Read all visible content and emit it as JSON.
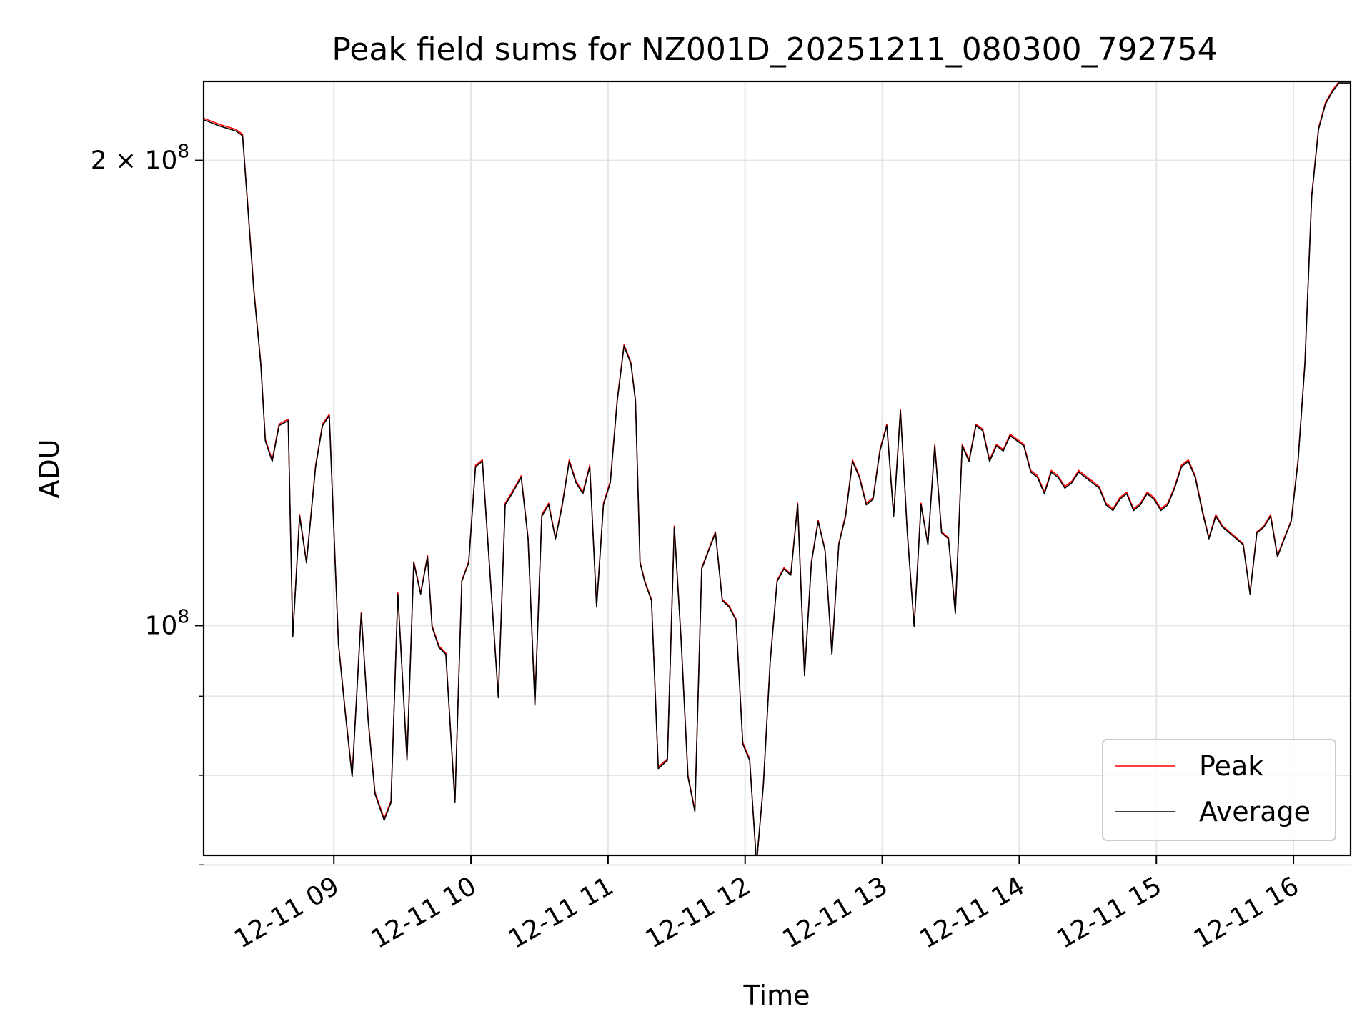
{
  "chart_data": {
    "type": "line",
    "title": "Peak field sums for NZ001D_20251211_080300_792754",
    "xlabel": "Time",
    "ylabel": "ADU",
    "yscale": "log",
    "xlim": [
      "2025-12-11 08:03",
      "2025-12-11 16:25"
    ],
    "ylim": [
      71000000,
      225000000
    ],
    "grid": true,
    "legend_position": "lower right",
    "x_ticks": [
      {
        "time": "2025-12-11 09:00",
        "label": "12-11 09"
      },
      {
        "time": "2025-12-11 10:00",
        "label": "12-11 10"
      },
      {
        "time": "2025-12-11 11:00",
        "label": "12-11 11"
      },
      {
        "time": "2025-12-11 12:00",
        "label": "12-11 12"
      },
      {
        "time": "2025-12-11 13:00",
        "label": "12-11 13"
      },
      {
        "time": "2025-12-11 14:00",
        "label": "12-11 14"
      },
      {
        "time": "2025-12-11 15:00",
        "label": "12-11 15"
      },
      {
        "time": "2025-12-11 16:00",
        "label": "12-11 16"
      }
    ],
    "y_major_ticks": [
      {
        "value": 100000000,
        "label_base": "10",
        "label_exp": "8"
      },
      {
        "value": 200000000,
        "label_base": "2 × 10",
        "label_exp": "8"
      }
    ],
    "y_minor_ticks": [
      70000000,
      80000000,
      90000000
    ],
    "colors": {
      "Peak": "#ff0000",
      "Average": "#000000",
      "grid": "#e5e5e5"
    },
    "series": [
      {
        "name": "Peak",
        "color": "#ff0000",
        "x": [
          "2025-12-11 08:03",
          "2025-12-11 08:10",
          "2025-12-11 08:17",
          "2025-12-11 08:20",
          "2025-12-11 08:22",
          "2025-12-11 08:25",
          "2025-12-11 08:28",
          "2025-12-11 08:30",
          "2025-12-11 08:33",
          "2025-12-11 08:36",
          "2025-12-11 08:40",
          "2025-12-11 08:42",
          "2025-12-11 08:45",
          "2025-12-11 08:48",
          "2025-12-11 08:52",
          "2025-12-11 08:55",
          "2025-12-11 08:58",
          "2025-12-11 09:02",
          "2025-12-11 09:05",
          "2025-12-11 09:08",
          "2025-12-11 09:12",
          "2025-12-11 09:15",
          "2025-12-11 09:18",
          "2025-12-11 09:22",
          "2025-12-11 09:25",
          "2025-12-11 09:28",
          "2025-12-11 09:32",
          "2025-12-11 09:35",
          "2025-12-11 09:38",
          "2025-12-11 09:41",
          "2025-12-11 09:43",
          "2025-12-11 09:46",
          "2025-12-11 09:49",
          "2025-12-11 09:53",
          "2025-12-11 09:56",
          "2025-12-11 09:59",
          "2025-12-11 10:02",
          "2025-12-11 10:05",
          "2025-12-11 10:08",
          "2025-12-11 10:12",
          "2025-12-11 10:15",
          "2025-12-11 10:18",
          "2025-12-11 10:22",
          "2025-12-11 10:25",
          "2025-12-11 10:28",
          "2025-12-11 10:31",
          "2025-12-11 10:34",
          "2025-12-11 10:37",
          "2025-12-11 10:40",
          "2025-12-11 10:43",
          "2025-12-11 10:46",
          "2025-12-11 10:49",
          "2025-12-11 10:52",
          "2025-12-11 10:55",
          "2025-12-11 10:58",
          "2025-12-11 11:01",
          "2025-12-11 11:04",
          "2025-12-11 11:07",
          "2025-12-11 11:10",
          "2025-12-11 11:12",
          "2025-12-11 11:14",
          "2025-12-11 11:16",
          "2025-12-11 11:19",
          "2025-12-11 11:22",
          "2025-12-11 11:26",
          "2025-12-11 11:29",
          "2025-12-11 11:32",
          "2025-12-11 11:35",
          "2025-12-11 11:38",
          "2025-12-11 11:41",
          "2025-12-11 11:44",
          "2025-12-11 11:47",
          "2025-12-11 11:50",
          "2025-12-11 11:53",
          "2025-12-11 11:56",
          "2025-12-11 11:59",
          "2025-12-11 12:02",
          "2025-12-11 12:05",
          "2025-12-11 12:08",
          "2025-12-11 12:11",
          "2025-12-11 12:14",
          "2025-12-11 12:17",
          "2025-12-11 12:20",
          "2025-12-11 12:23",
          "2025-12-11 12:26",
          "2025-12-11 12:29",
          "2025-12-11 12:32",
          "2025-12-11 12:35",
          "2025-12-11 12:38",
          "2025-12-11 12:41",
          "2025-12-11 12:44",
          "2025-12-11 12:47",
          "2025-12-11 12:50",
          "2025-12-11 12:53",
          "2025-12-11 12:56",
          "2025-12-11 12:59",
          "2025-12-11 13:02",
          "2025-12-11 13:05",
          "2025-12-11 13:08",
          "2025-12-11 13:11",
          "2025-12-11 13:14",
          "2025-12-11 13:17",
          "2025-12-11 13:20",
          "2025-12-11 13:23",
          "2025-12-11 13:26",
          "2025-12-11 13:29",
          "2025-12-11 13:32",
          "2025-12-11 13:35",
          "2025-12-11 13:38",
          "2025-12-11 13:41",
          "2025-12-11 13:44",
          "2025-12-11 13:47",
          "2025-12-11 13:50",
          "2025-12-11 13:53",
          "2025-12-11 13:56",
          "2025-12-11 13:59",
          "2025-12-11 14:02",
          "2025-12-11 14:05",
          "2025-12-11 14:08",
          "2025-12-11 14:11",
          "2025-12-11 14:14",
          "2025-12-11 14:17",
          "2025-12-11 14:20",
          "2025-12-11 14:23",
          "2025-12-11 14:26",
          "2025-12-11 14:29",
          "2025-12-11 14:32",
          "2025-12-11 14:35",
          "2025-12-11 14:38",
          "2025-12-11 14:41",
          "2025-12-11 14:44",
          "2025-12-11 14:47",
          "2025-12-11 14:50",
          "2025-12-11 14:53",
          "2025-12-11 14:56",
          "2025-12-11 14:59",
          "2025-12-11 15:02",
          "2025-12-11 15:05",
          "2025-12-11 15:08",
          "2025-12-11 15:11",
          "2025-12-11 15:14",
          "2025-12-11 15:17",
          "2025-12-11 15:20",
          "2025-12-11 15:23",
          "2025-12-11 15:26",
          "2025-12-11 15:29",
          "2025-12-11 15:32",
          "2025-12-11 15:35",
          "2025-12-11 15:38",
          "2025-12-11 15:41",
          "2025-12-11 15:44",
          "2025-12-11 15:47",
          "2025-12-11 15:50",
          "2025-12-11 15:53",
          "2025-12-11 15:56",
          "2025-12-11 15:59",
          "2025-12-11 16:02",
          "2025-12-11 16:05",
          "2025-12-11 16:08",
          "2025-12-11 16:11",
          "2025-12-11 16:14",
          "2025-12-11 16:17",
          "2025-12-11 16:20",
          "2025-12-11 16:25"
        ],
        "y": [
          213000000,
          211000000,
          209500000,
          208000000,
          190000000,
          165000000,
          148000000,
          132000000,
          128000000,
          135000000,
          136000000,
          98500000,
          118000000,
          110000000,
          127000000,
          135000000,
          137000000,
          97500000,
          88000000,
          80000000,
          102000000,
          87000000,
          78000000,
          75000000,
          77000000,
          105000000,
          82000000,
          110000000,
          105000000,
          111000000,
          100000000,
          97000000,
          96000000,
          77000000,
          107000000,
          110000000,
          127000000,
          128000000,
          110000000,
          90000000,
          120000000,
          122000000,
          125000000,
          114000000,
          89000000,
          118000000,
          120000000,
          114000000,
          120000000,
          128000000,
          124000000,
          122000000,
          127000000,
          103000000,
          120000000,
          124000000,
          140000000,
          152000000,
          148000000,
          140000000,
          110000000,
          107000000,
          104000000,
          81000000,
          82000000,
          116000000,
          98000000,
          80000000,
          76000000,
          109000000,
          112000000,
          115000000,
          104000000,
          103000000,
          101000000,
          84000000,
          82000000,
          70000000,
          79000000,
          95000000,
          107000000,
          109000000,
          108000000,
          120000000,
          93000000,
          110000000,
          117000000,
          112000000,
          96000000,
          113000000,
          118000000,
          128000000,
          125000000,
          120000000,
          121000000,
          130000000,
          135000000,
          118000000,
          138000000,
          115000000,
          100000000,
          120000000,
          113000000,
          131000000,
          115000000,
          114000000,
          102000000,
          131000000,
          128000000,
          135000000,
          134000000,
          128000000,
          131000000,
          130000000,
          133000000,
          132000000,
          131000000,
          126000000,
          125000000,
          122000000,
          126000000,
          125000000,
          123000000,
          124000000,
          126000000,
          125000000,
          124000000,
          123000000,
          120000000,
          119000000,
          121000000,
          122000000,
          119000000,
          120000000,
          122000000,
          121000000,
          119000000,
          120000000,
          123000000,
          127000000,
          128000000,
          125000000,
          119000000,
          114000000,
          118000000,
          116000000,
          115000000,
          114000000,
          113000000,
          105000000,
          115000000,
          116000000,
          118000000,
          111000000,
          114000000,
          117000000,
          128000000,
          148000000,
          190000000,
          210000000,
          218000000,
          222000000,
          225000000,
          225000000
        ]
      },
      {
        "name": "Average",
        "color": "#000000",
        "x": [
          "2025-12-11 08:03",
          "2025-12-11 08:10",
          "2025-12-11 08:17",
          "2025-12-11 08:20",
          "2025-12-11 08:22",
          "2025-12-11 08:25",
          "2025-12-11 08:28",
          "2025-12-11 08:30",
          "2025-12-11 08:33",
          "2025-12-11 08:36",
          "2025-12-11 08:40",
          "2025-12-11 08:42",
          "2025-12-11 08:45",
          "2025-12-11 08:48",
          "2025-12-11 08:52",
          "2025-12-11 08:55",
          "2025-12-11 08:58",
          "2025-12-11 09:02",
          "2025-12-11 09:05",
          "2025-12-11 09:08",
          "2025-12-11 09:12",
          "2025-12-11 09:15",
          "2025-12-11 09:18",
          "2025-12-11 09:22",
          "2025-12-11 09:25",
          "2025-12-11 09:28",
          "2025-12-11 09:32",
          "2025-12-11 09:35",
          "2025-12-11 09:38",
          "2025-12-11 09:41",
          "2025-12-11 09:43",
          "2025-12-11 09:46",
          "2025-12-11 09:49",
          "2025-12-11 09:53",
          "2025-12-11 09:56",
          "2025-12-11 09:59",
          "2025-12-11 10:02",
          "2025-12-11 10:05",
          "2025-12-11 10:08",
          "2025-12-11 10:12",
          "2025-12-11 10:15",
          "2025-12-11 10:18",
          "2025-12-11 10:22",
          "2025-12-11 10:25",
          "2025-12-11 10:28",
          "2025-12-11 10:31",
          "2025-12-11 10:34",
          "2025-12-11 10:37",
          "2025-12-11 10:40",
          "2025-12-11 10:43",
          "2025-12-11 10:46",
          "2025-12-11 10:49",
          "2025-12-11 10:52",
          "2025-12-11 10:55",
          "2025-12-11 10:58",
          "2025-12-11 11:01",
          "2025-12-11 11:04",
          "2025-12-11 11:07",
          "2025-12-11 11:10",
          "2025-12-11 11:12",
          "2025-12-11 11:14",
          "2025-12-11 11:16",
          "2025-12-11 11:19",
          "2025-12-11 11:22",
          "2025-12-11 11:26",
          "2025-12-11 11:29",
          "2025-12-11 11:32",
          "2025-12-11 11:35",
          "2025-12-11 11:38",
          "2025-12-11 11:41",
          "2025-12-11 11:44",
          "2025-12-11 11:47",
          "2025-12-11 11:50",
          "2025-12-11 11:53",
          "2025-12-11 11:56",
          "2025-12-11 11:59",
          "2025-12-11 12:02",
          "2025-12-11 12:05",
          "2025-12-11 12:08",
          "2025-12-11 12:11",
          "2025-12-11 12:14",
          "2025-12-11 12:17",
          "2025-12-11 12:20",
          "2025-12-11 12:23",
          "2025-12-11 12:26",
          "2025-12-11 12:29",
          "2025-12-11 12:32",
          "2025-12-11 12:35",
          "2025-12-11 12:38",
          "2025-12-11 12:41",
          "2025-12-11 12:44",
          "2025-12-11 12:47",
          "2025-12-11 12:50",
          "2025-12-11 12:53",
          "2025-12-11 12:56",
          "2025-12-11 12:59",
          "2025-12-11 13:02",
          "2025-12-11 13:05",
          "2025-12-11 13:08",
          "2025-12-11 13:11",
          "2025-12-11 13:14",
          "2025-12-11 13:17",
          "2025-12-11 13:20",
          "2025-12-11 13:23",
          "2025-12-11 13:26",
          "2025-12-11 13:29",
          "2025-12-11 13:32",
          "2025-12-11 13:35",
          "2025-12-11 13:38",
          "2025-12-11 13:41",
          "2025-12-11 13:44",
          "2025-12-11 13:47",
          "2025-12-11 13:50",
          "2025-12-11 13:53",
          "2025-12-11 13:56",
          "2025-12-11 13:59",
          "2025-12-11 14:02",
          "2025-12-11 14:05",
          "2025-12-11 14:08",
          "2025-12-11 14:11",
          "2025-12-11 14:14",
          "2025-12-11 14:17",
          "2025-12-11 14:20",
          "2025-12-11 14:23",
          "2025-12-11 14:26",
          "2025-12-11 14:29",
          "2025-12-11 14:32",
          "2025-12-11 14:35",
          "2025-12-11 14:38",
          "2025-12-11 14:41",
          "2025-12-11 14:44",
          "2025-12-11 14:47",
          "2025-12-11 14:50",
          "2025-12-11 14:53",
          "2025-12-11 14:56",
          "2025-12-11 14:59",
          "2025-12-11 15:02",
          "2025-12-11 15:05",
          "2025-12-11 15:08",
          "2025-12-11 15:11",
          "2025-12-11 15:14",
          "2025-12-11 15:17",
          "2025-12-11 15:20",
          "2025-12-11 15:23",
          "2025-12-11 15:26",
          "2025-12-11 15:29",
          "2025-12-11 15:32",
          "2025-12-11 15:35",
          "2025-12-11 15:38",
          "2025-12-11 15:41",
          "2025-12-11 15:44",
          "2025-12-11 15:47",
          "2025-12-11 15:50",
          "2025-12-11 15:53",
          "2025-12-11 15:56",
          "2025-12-11 15:59",
          "2025-12-11 16:02",
          "2025-12-11 16:05",
          "2025-12-11 16:08",
          "2025-12-11 16:11",
          "2025-12-11 16:14",
          "2025-12-11 16:17",
          "2025-12-11 16:20",
          "2025-12-11 16:25"
        ],
        "y": [
          212500000,
          210500000,
          209000000,
          207500000,
          189500000,
          164500000,
          147700000,
          131700000,
          127700000,
          134700000,
          135700000,
          98300000,
          117700000,
          109800000,
          126700000,
          134700000,
          136700000,
          97300000,
          87800000,
          79800000,
          101800000,
          86800000,
          77800000,
          74800000,
          76800000,
          104800000,
          81800000,
          109800000,
          104800000,
          110800000,
          99800000,
          96800000,
          95800000,
          76800000,
          106800000,
          109800000,
          126700000,
          127700000,
          109800000,
          89800000,
          119700000,
          121700000,
          124700000,
          113800000,
          88800000,
          117700000,
          119700000,
          113800000,
          119700000,
          127700000,
          123700000,
          121700000,
          126700000,
          102800000,
          119700000,
          123700000,
          139700000,
          151700000,
          147700000,
          139700000,
          109800000,
          106800000,
          103800000,
          80800000,
          81800000,
          115800000,
          97800000,
          79800000,
          75800000,
          108800000,
          111800000,
          114800000,
          103800000,
          102800000,
          100800000,
          83800000,
          81800000,
          70200000,
          78800000,
          94800000,
          106800000,
          108800000,
          107800000,
          119700000,
          92800000,
          109800000,
          116800000,
          111800000,
          95800000,
          112800000,
          117700000,
          127700000,
          124700000,
          119700000,
          120700000,
          129700000,
          134700000,
          117700000,
          137700000,
          114800000,
          99800000,
          119700000,
          112800000,
          130700000,
          114800000,
          113800000,
          101800000,
          130700000,
          127700000,
          134700000,
          133700000,
          127700000,
          130700000,
          129700000,
          132700000,
          131700000,
          130700000,
          125700000,
          124700000,
          121700000,
          125700000,
          124700000,
          122700000,
          123700000,
          125700000,
          124700000,
          123700000,
          122700000,
          119700000,
          118700000,
          120700000,
          121700000,
          118700000,
          119700000,
          121700000,
          120700000,
          118700000,
          119700000,
          122700000,
          126700000,
          127700000,
          124700000,
          118700000,
          113800000,
          117700000,
          115800000,
          114800000,
          113800000,
          112800000,
          104800000,
          114800000,
          115800000,
          117700000,
          110800000,
          113800000,
          116800000,
          127700000,
          147700000,
          189500000,
          209500000,
          217500000,
          221500000,
          224500000,
          224500000
        ]
      }
    ]
  }
}
